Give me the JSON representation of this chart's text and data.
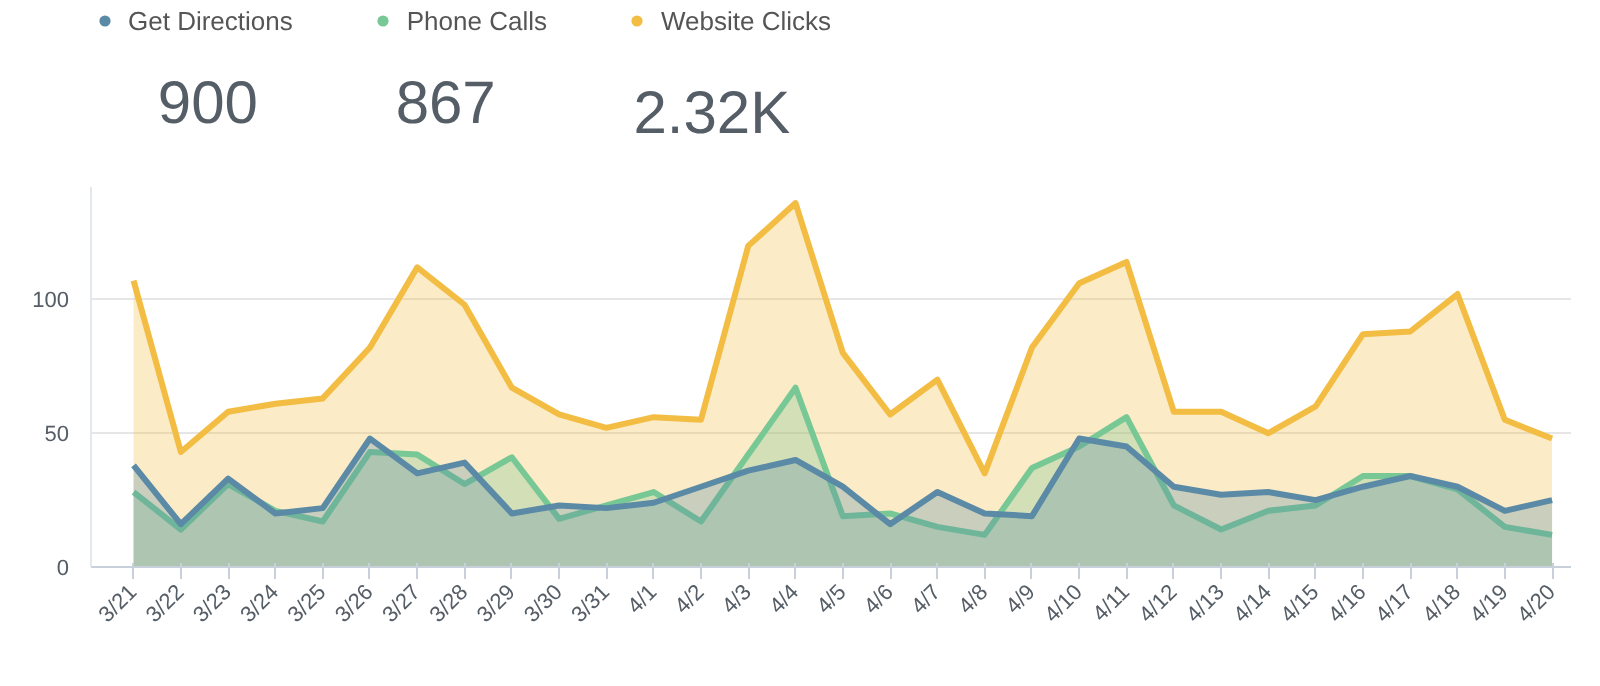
{
  "chart_data": {
    "type": "area",
    "categories": [
      "3/21",
      "3/22",
      "3/23",
      "3/24",
      "3/25",
      "3/26",
      "3/27",
      "3/28",
      "3/29",
      "3/30",
      "3/31",
      "4/1",
      "4/2",
      "4/3",
      "4/4",
      "4/5",
      "4/6",
      "4/7",
      "4/8",
      "4/9",
      "4/10",
      "4/11",
      "4/12",
      "4/13",
      "4/14",
      "4/15",
      "4/16",
      "4/17",
      "4/18",
      "4/19",
      "4/20"
    ],
    "series": [
      {
        "name": "Get Directions",
        "color": "#5b8aa6",
        "values": [
          38,
          16,
          33,
          20,
          22,
          48,
          35,
          39,
          20,
          23,
          22,
          24,
          30,
          36,
          40,
          30,
          16,
          28,
          20,
          19,
          48,
          45,
          30,
          27,
          28,
          25,
          30,
          34,
          30,
          21,
          25
        ]
      },
      {
        "name": "Phone Calls",
        "color": "#78c896",
        "values": [
          28,
          14,
          31,
          21,
          17,
          43,
          42,
          31,
          41,
          18,
          23,
          28,
          17,
          42,
          67,
          19,
          20,
          15,
          12,
          37,
          45,
          56,
          23,
          14,
          21,
          23,
          34,
          34,
          29,
          15,
          12
        ]
      },
      {
        "name": "Website Clicks",
        "color": "#f2bd42",
        "values": [
          107,
          43,
          58,
          61,
          63,
          82,
          112,
          98,
          67,
          57,
          52,
          56,
          55,
          120,
          136,
          80,
          57,
          70,
          35,
          82,
          106,
          114,
          58,
          58,
          50,
          60,
          87,
          88,
          102,
          55,
          48
        ]
      }
    ],
    "annotations": [
      "900",
      "867",
      "2.32K"
    ],
    "ylim": [
      0,
      142
    ],
    "yticks": [
      0,
      50,
      100
    ],
    "grid": "y",
    "legend": "top left"
  }
}
